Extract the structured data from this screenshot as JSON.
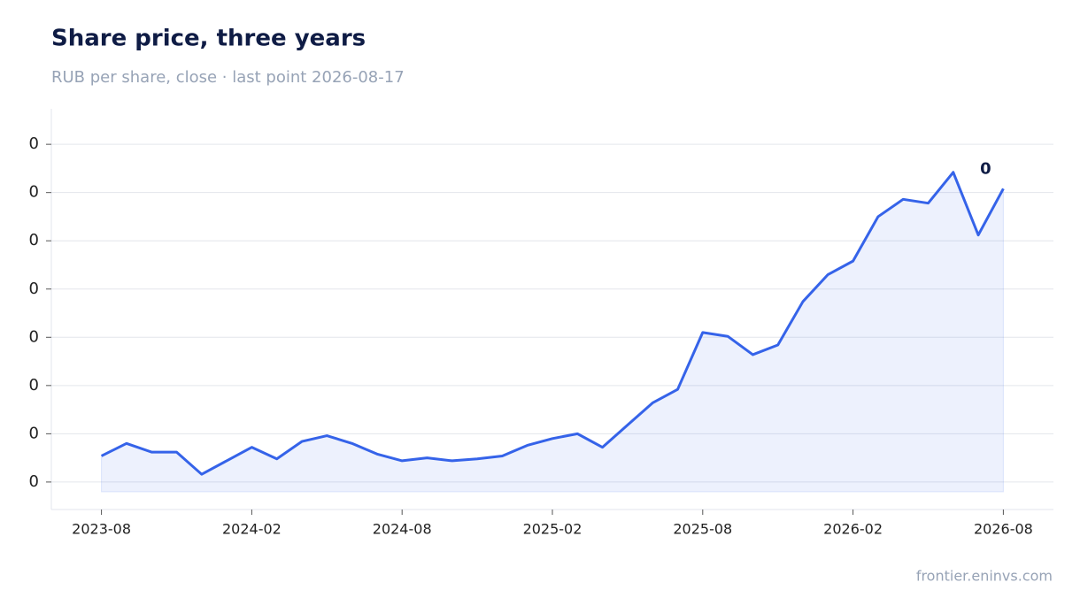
{
  "chart_data": {
    "type": "area",
    "title": "Share price, three years",
    "subtitle": "RUB per share, close · last point 2026-08-17",
    "source": "frontier.eninvs.com",
    "x": [
      "2023-08",
      "2023-09",
      "2023-10",
      "2023-11",
      "2023-12",
      "2024-01",
      "2024-02",
      "2024-03",
      "2024-04",
      "2024-05",
      "2024-06",
      "2024-07",
      "2024-08",
      "2024-09",
      "2024-10",
      "2024-11",
      "2024-12",
      "2025-01",
      "2025-02",
      "2025-03",
      "2025-04",
      "2025-05",
      "2025-06",
      "2025-07",
      "2025-08",
      "2025-09",
      "2025-10",
      "2025-11",
      "2025-12",
      "2026-01",
      "2026-02",
      "2026-03",
      "2026-04",
      "2026-05",
      "2026-06",
      "2026-07",
      "2026-08"
    ],
    "series": [
      {
        "name": "Close",
        "color": "#3563e9",
        "values": [
          0.127,
          0.14,
          0.131,
          0.131,
          0.108,
          0.122,
          0.136,
          0.124,
          0.142,
          0.148,
          0.14,
          0.129,
          0.122,
          0.125,
          0.122,
          0.124,
          0.127,
          0.138,
          0.145,
          0.15,
          0.136,
          0.159,
          0.182,
          0.196,
          0.255,
          0.251,
          0.232,
          0.242,
          0.287,
          0.315,
          0.329,
          0.375,
          0.393,
          0.389,
          0.421,
          0.356,
          0.404
        ]
      }
    ],
    "annotations": [
      {
        "text": "0",
        "x": "2026-08",
        "value": 0.404
      }
    ],
    "xlim": [
      "2023-06",
      "2026-10"
    ],
    "xticks": [
      "2023-08",
      "2024-02",
      "2024-08",
      "2025-02",
      "2025-08",
      "2026-02",
      "2026-08"
    ],
    "ylim": [
      0.0715,
      0.4868
    ],
    "yticks": [
      {
        "value": 0.1,
        "label": "0"
      },
      {
        "value": 0.15,
        "label": "0"
      },
      {
        "value": 0.2,
        "label": "0"
      },
      {
        "value": 0.25,
        "label": "0"
      },
      {
        "value": 0.3,
        "label": "0"
      },
      {
        "value": 0.35,
        "label": "0"
      },
      {
        "value": 0.4,
        "label": "0"
      },
      {
        "value": 0.45,
        "label": "0"
      }
    ],
    "grid": true
  }
}
